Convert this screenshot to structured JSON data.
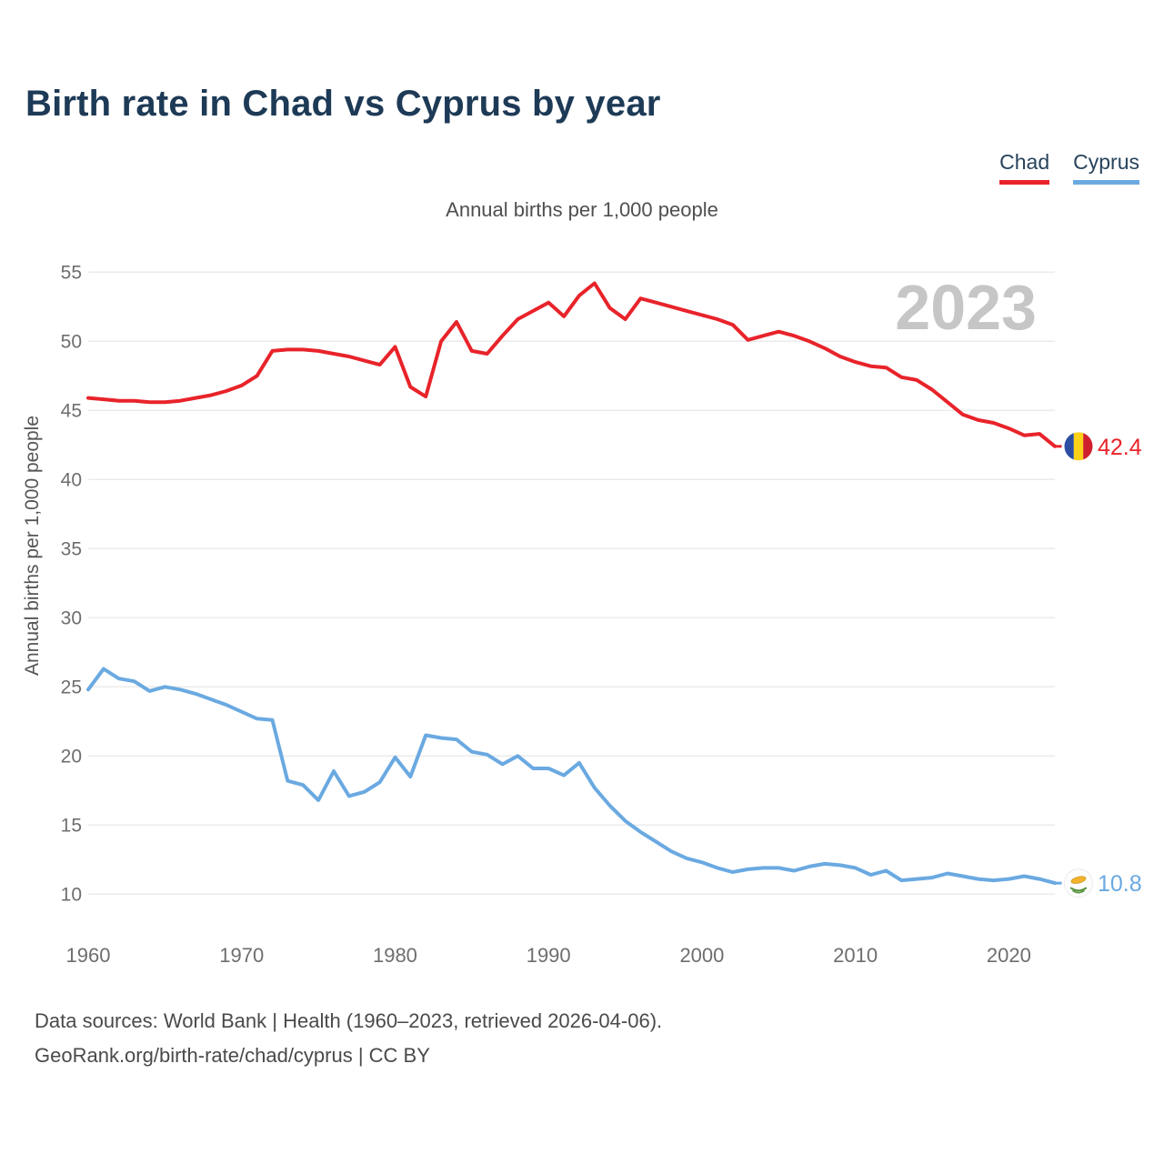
{
  "header": {
    "title": "Birth rate in Chad vs Cyprus by year"
  },
  "legend": [
    {
      "label": "Chad",
      "color": "#e8232a"
    },
    {
      "label": "Cyprus",
      "color": "#6aa9e1"
    }
  ],
  "subtitle": "Annual births per 1,000 people",
  "watermark": "2023",
  "axes": {
    "y_title": "Annual births per 1,000 people"
  },
  "footer": {
    "line1": "Data sources: World Bank | Health (1960–2023, retrieved 2026-04-06).",
    "line2": "GeoRank.org/birth-rate/chad/cyprus | CC BY"
  },
  "chart_data": {
    "type": "line",
    "title": "Annual births per 1,000 people",
    "xlabel": "",
    "ylabel": "Annual births per 1,000 people",
    "grid": true,
    "legend_position": "top-right",
    "ylim": [
      8,
      56
    ],
    "yticks": [
      10,
      15,
      20,
      25,
      30,
      35,
      40,
      45,
      50,
      55
    ],
    "xticks": [
      1960,
      1970,
      1980,
      1990,
      2000,
      2010,
      2020
    ],
    "x": [
      1960,
      1961,
      1962,
      1963,
      1964,
      1965,
      1966,
      1967,
      1968,
      1969,
      1970,
      1971,
      1972,
      1973,
      1974,
      1975,
      1976,
      1977,
      1978,
      1979,
      1980,
      1981,
      1982,
      1983,
      1984,
      1985,
      1986,
      1987,
      1988,
      1989,
      1990,
      1991,
      1992,
      1993,
      1994,
      1995,
      1996,
      1997,
      1998,
      1999,
      2000,
      2001,
      2002,
      2003,
      2004,
      2005,
      2006,
      2007,
      2008,
      2009,
      2010,
      2011,
      2012,
      2013,
      2014,
      2015,
      2016,
      2017,
      2018,
      2019,
      2020,
      2021,
      2022,
      2023
    ],
    "series": [
      {
        "name": "Chad",
        "color": "#e8232a",
        "end_label": "42.4",
        "flag": "chad",
        "values": [
          45.9,
          45.8,
          45.7,
          45.7,
          45.6,
          45.6,
          45.7,
          45.9,
          46.1,
          46.4,
          46.8,
          47.5,
          49.3,
          49.4,
          49.4,
          49.3,
          49.1,
          48.9,
          48.6,
          48.3,
          49.6,
          46.7,
          46.0,
          50.0,
          51.4,
          49.3,
          49.1,
          50.4,
          51.6,
          52.2,
          52.8,
          51.8,
          53.3,
          54.2,
          52.4,
          51.6,
          53.1,
          52.8,
          52.5,
          52.2,
          51.9,
          51.6,
          51.2,
          50.1,
          50.4,
          50.7,
          50.4,
          50.0,
          49.5,
          48.9,
          48.5,
          48.2,
          48.1,
          47.4,
          47.2,
          46.5,
          45.6,
          44.7,
          44.3,
          44.1,
          43.7,
          43.2,
          43.3,
          42.4
        ]
      },
      {
        "name": "Cyprus",
        "color": "#6aa9e1",
        "end_label": "10.8",
        "flag": "cyprus",
        "values": [
          24.8,
          26.3,
          25.6,
          25.4,
          24.7,
          25.0,
          24.8,
          24.5,
          24.1,
          23.7,
          23.2,
          22.7,
          22.6,
          18.2,
          17.9,
          16.8,
          18.9,
          17.1,
          17.4,
          18.1,
          19.9,
          18.5,
          21.5,
          21.3,
          21.2,
          20.3,
          20.1,
          19.4,
          20.0,
          19.1,
          19.1,
          18.6,
          19.5,
          17.7,
          16.4,
          15.3,
          14.5,
          13.8,
          13.1,
          12.6,
          12.3,
          11.9,
          11.6,
          11.8,
          11.9,
          11.9,
          11.7,
          12.0,
          12.2,
          12.1,
          11.9,
          11.4,
          11.7,
          11.0,
          11.1,
          11.2,
          11.5,
          11.3,
          11.1,
          11.0,
          11.1,
          11.3,
          11.1,
          10.8
        ]
      }
    ]
  }
}
